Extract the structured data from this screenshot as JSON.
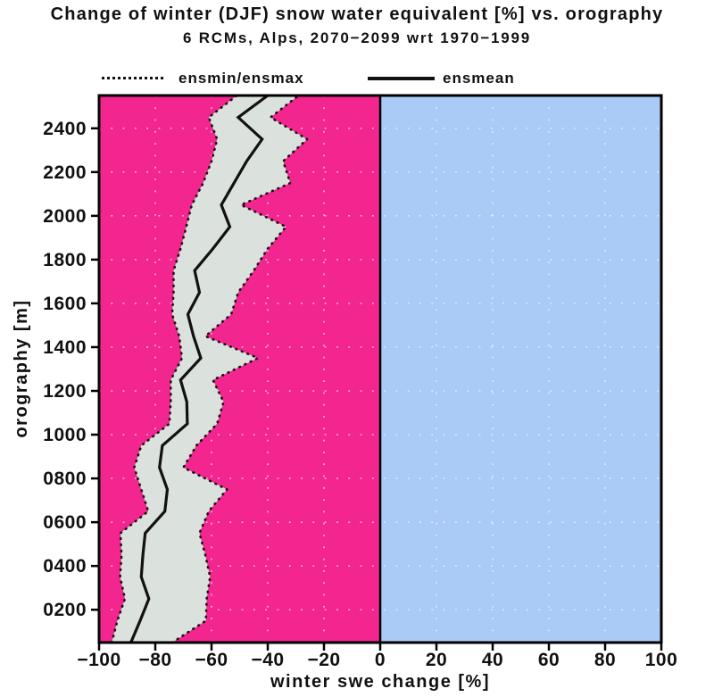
{
  "header": {
    "title": "Change of winter (DJF) snow water equivalent [%] vs. orography",
    "subtitle": "6 RCMs, Alps, 2070−2099 wrt 1970−1999"
  },
  "legend": {
    "band_label": "ensmin/ensmax",
    "mean_label": "ensmean"
  },
  "colors": {
    "negative_bg": "#F3268F",
    "positive_bg": "#A9CBF5",
    "band_fill": "#DBE1DD",
    "line_color": "#111111",
    "gridline_color": "#FFFFFF",
    "axis_color": "#000000"
  },
  "chart_data": {
    "type": "line",
    "title": "Change of winter (DJF) snow water equivalent [%] vs. orography",
    "subtitle": "6 RCMs, Alps, 2070−2099 wrt 1970−1999",
    "xlabel": "winter swe change [%]",
    "ylabel": "orography [m]",
    "xlim": [
      -100,
      100
    ],
    "ylim": [
      50,
      2550
    ],
    "grid": true,
    "legend_position": "top",
    "xticks": [
      -100,
      -80,
      -60,
      -40,
      -20,
      0,
      20,
      40,
      60,
      80,
      100
    ],
    "xtick_labels": [
      "−100",
      "−80",
      "−60",
      "−40",
      "−20",
      "0",
      "20",
      "40",
      "60",
      "80",
      "100"
    ],
    "yticks": [
      200,
      400,
      600,
      800,
      1000,
      1200,
      1400,
      1600,
      1800,
      2000,
      2200,
      2400
    ],
    "ytick_labels": [
      "0200",
      "0400",
      "0600",
      "0800",
      "1000",
      "1200",
      "1400",
      "1600",
      "1800",
      "2000",
      "2200",
      "2400"
    ],
    "x_elevation_m": [
      50,
      150,
      250,
      350,
      450,
      550,
      650,
      750,
      850,
      950,
      1050,
      1150,
      1250,
      1350,
      1450,
      1550,
      1650,
      1750,
      1850,
      1950,
      2050,
      2150,
      2250,
      2350,
      2450,
      2550
    ],
    "series": [
      {
        "name": "ensmin",
        "style": "dotted",
        "values": [
          -95.5,
          -93.5,
          -90.8,
          -92.5,
          -92,
          -92.4,
          -82.5,
          -85,
          -87.5,
          -85,
          -75,
          -74.5,
          -74.5,
          -70.5,
          -71.5,
          -74,
          -73.5,
          -73.5,
          -71,
          -69,
          -67,
          -63,
          -60,
          -58,
          -61,
          -51
        ]
      },
      {
        "name": "ensmean",
        "style": "solid",
        "values": [
          -88.7,
          -85.4,
          -82.3,
          -85,
          -84.4,
          -83.6,
          -76.6,
          -75.7,
          -78.5,
          -77.5,
          -68.6,
          -68.8,
          -71,
          -63.8,
          -66.4,
          -68.4,
          -64.3,
          -66,
          -59.5,
          -53.5,
          -56.5,
          -52,
          -47.5,
          -42,
          -50.5,
          -40
        ]
      },
      {
        "name": "ensmax",
        "style": "dotted",
        "values": [
          -74,
          -62,
          -61.7,
          -60.5,
          -62.2,
          -64.3,
          -61,
          -54.5,
          -70,
          -65.4,
          -58,
          -55.7,
          -59.5,
          -43.5,
          -62.2,
          -53,
          -50.5,
          -45,
          -40,
          -33.5,
          -49.5,
          -32,
          -34.5,
          -26,
          -39,
          -29
        ]
      }
    ]
  }
}
